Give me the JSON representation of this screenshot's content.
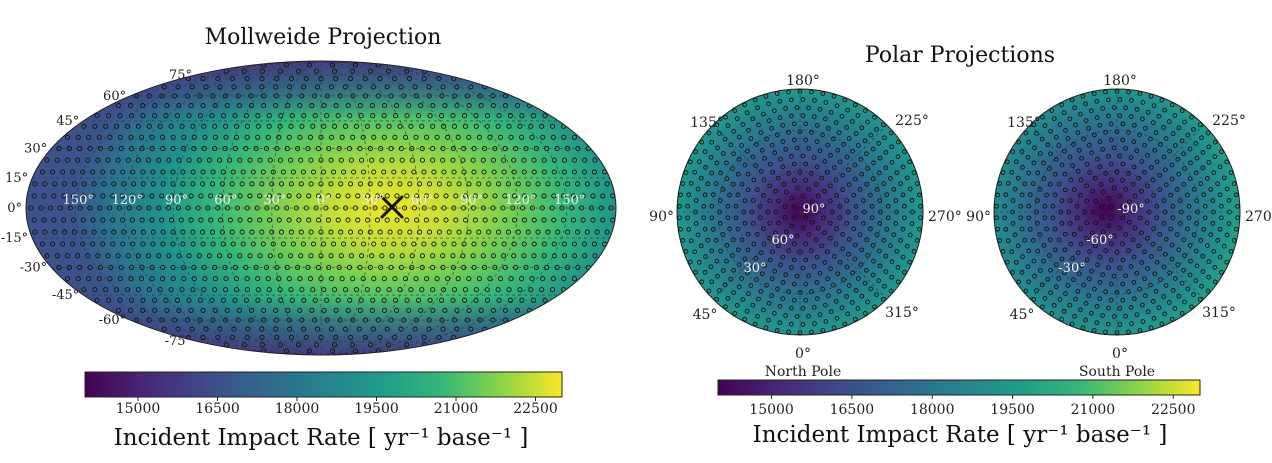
{
  "chart_data": [
    {
      "type": "heatmap",
      "projection": "mollweide",
      "title": "Mollweide Projection",
      "lat_labels": [
        "75°",
        "60°",
        "45°",
        "30°",
        "15°",
        "0°",
        "-15°",
        "-30°",
        "-45°",
        "-60°",
        "-75°"
      ],
      "lon_labels": [
        "150°",
        "120°",
        "90°",
        "60°",
        "30°",
        "0°",
        "30°",
        "60°",
        "90°",
        "120°",
        "150°"
      ],
      "marker": {
        "symbol": "×",
        "lon": 30,
        "lat": 0
      },
      "colorbar": {
        "label": "Incident Impact Rate [ yr⁻¹ base⁻¹ ]",
        "ticks": [
          "15000",
          "16500",
          "18000",
          "19500",
          "21000",
          "22500"
        ],
        "range": [
          14000,
          23000
        ],
        "colormap": "viridis"
      },
      "peak_value": 22500,
      "min_value": 14500
    },
    {
      "type": "heatmap",
      "projection": "polar",
      "title": "Polar Projections",
      "panels": [
        {
          "name": "North Pole",
          "lat_labels": [
            "90°",
            "60°",
            "30°"
          ],
          "center_value": 14500
        },
        {
          "name": "South Pole",
          "lat_labels": [
            "-90°",
            "-60°",
            "-30°"
          ],
          "center_value": 14800
        }
      ],
      "lon_labels": [
        "180°",
        "225°",
        "270°",
        "315°",
        "0°",
        "45°",
        "90°",
        "135°"
      ],
      "colorbar": {
        "label": "Incident Impact Rate [ yr⁻¹ base⁻¹ ]",
        "ticks": [
          "15000",
          "16500",
          "18000",
          "19500",
          "21000",
          "22500"
        ],
        "range": [
          14000,
          23000
        ],
        "colormap": "viridis"
      }
    }
  ]
}
